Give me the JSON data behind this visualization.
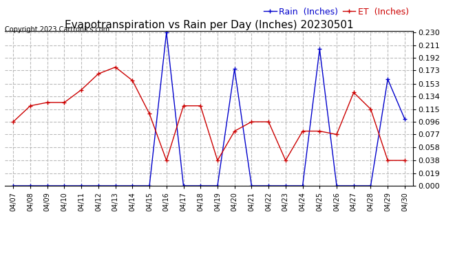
{
  "title": "Evapotranspiration vs Rain per Day (Inches) 20230501",
  "copyright": "Copyright 2023 Cartronics.com",
  "legend_rain": "Rain  (Inches)",
  "legend_et": "ET  (Inches)",
  "dates": [
    "04/07",
    "04/08",
    "04/09",
    "04/10",
    "04/11",
    "04/12",
    "04/13",
    "04/14",
    "04/15",
    "04/16",
    "04/17",
    "04/18",
    "04/19",
    "04/20",
    "04/21",
    "04/22",
    "04/23",
    "04/24",
    "04/25",
    "04/26",
    "04/27",
    "04/28",
    "04/29",
    "04/30"
  ],
  "rain": [
    0.0,
    0.0,
    0.0,
    0.0,
    0.0,
    0.0,
    0.0,
    0.0,
    0.0,
    0.23,
    0.0,
    0.0,
    0.0,
    0.175,
    0.0,
    0.0,
    0.0,
    0.0,
    0.205,
    0.0,
    0.0,
    0.0,
    0.16,
    0.1
  ],
  "et": [
    0.096,
    0.12,
    0.125,
    0.125,
    0.144,
    0.168,
    0.178,
    0.158,
    0.108,
    0.038,
    0.12,
    0.12,
    0.038,
    0.082,
    0.096,
    0.096,
    0.038,
    0.082,
    0.082,
    0.077,
    0.14,
    0.115,
    0.038,
    0.038
  ],
  "ylim_min": 0.0,
  "ylim_max": 0.23,
  "yticks": [
    0.0,
    0.019,
    0.038,
    0.058,
    0.077,
    0.096,
    0.115,
    0.134,
    0.153,
    0.173,
    0.192,
    0.211,
    0.23
  ],
  "rain_color": "#0000cc",
  "et_color": "#cc0000",
  "grid_color": "#bbbbbb",
  "bg_color": "#ffffff",
  "title_fontsize": 11,
  "copyright_fontsize": 7,
  "tick_fontsize": 8,
  "legend_fontsize": 9
}
